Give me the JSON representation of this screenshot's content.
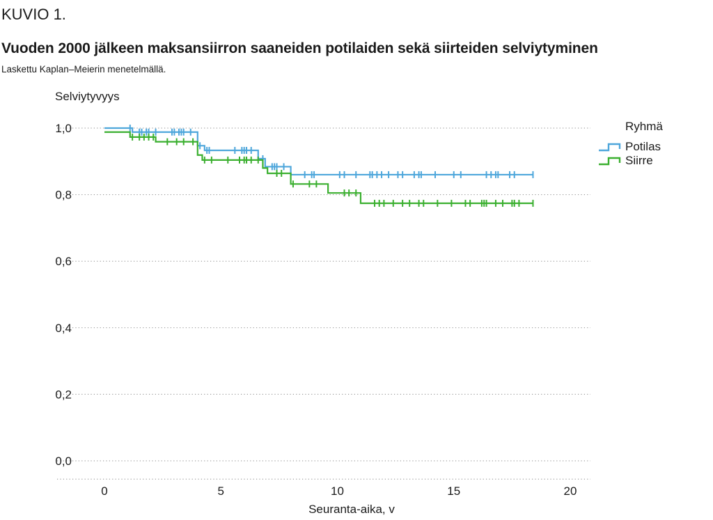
{
  "header": {
    "figure_label": "KUVIO 1.",
    "title": "Vuoden 2000 jälkeen maksansiirron saaneiden potilaiden sekä siirteiden selviytyminen",
    "subtitle": "Laskettu Kaplan–Meierin menetelmällä."
  },
  "chart_data": {
    "type": "line",
    "step": true,
    "ylabel": "Selviytyvyys",
    "xlabel": "Seuranta-aika, v",
    "xlim": [
      -0.4,
      20.9
    ],
    "ylim": [
      -0.055,
      1.0
    ],
    "x_ticks": [
      0,
      5,
      10,
      15,
      20
    ],
    "x_tick_labels": [
      "0",
      "5",
      "10",
      "15",
      "20"
    ],
    "y_ticks": [
      0.0,
      0.2,
      0.4,
      0.6,
      0.8,
      1.0
    ],
    "y_tick_labels": [
      "0,0",
      "0,2",
      "0,4",
      "0,6",
      "0,8",
      "1,0"
    ],
    "grid": "horizontal dotted",
    "legend": {
      "title": "Ryhmä",
      "position": "right"
    },
    "series": [
      {
        "name": "Potilas",
        "color": "#4da6db",
        "steps": [
          [
            0,
            1.0
          ],
          [
            1.2,
            0.988
          ],
          [
            4.0,
            0.947
          ],
          [
            4.3,
            0.933
          ],
          [
            6.6,
            0.908
          ],
          [
            6.9,
            0.884
          ],
          [
            8.0,
            0.86
          ],
          [
            18.4,
            0.86
          ]
        ],
        "censored": [
          1.1,
          1.5,
          1.6,
          1.8,
          1.9,
          2.2,
          2.9,
          3.0,
          3.2,
          3.3,
          3.4,
          3.7,
          4.1,
          4.4,
          4.5,
          5.6,
          5.9,
          6.0,
          6.1,
          6.3,
          6.8,
          7.2,
          7.3,
          7.4,
          7.7,
          8.6,
          8.9,
          9.0,
          10.1,
          10.3,
          10.8,
          11.4,
          11.5,
          11.7,
          11.9,
          12.2,
          12.6,
          12.8,
          13.3,
          13.5,
          13.6,
          14.2,
          15.0,
          15.3,
          16.4,
          16.6,
          16.8,
          16.9,
          17.4,
          17.6,
          18.4
        ]
      },
      {
        "name": "Siirre",
        "color": "#3aaf2f",
        "steps": [
          [
            0,
            0.988
          ],
          [
            1.1,
            0.973
          ],
          [
            2.2,
            0.959
          ],
          [
            4.0,
            0.919
          ],
          [
            4.2,
            0.904
          ],
          [
            6.8,
            0.88
          ],
          [
            7.0,
            0.864
          ],
          [
            8.0,
            0.832
          ],
          [
            9.6,
            0.805
          ],
          [
            11.0,
            0.774
          ],
          [
            18.4,
            0.774
          ]
        ],
        "censored": [
          1.2,
          1.5,
          1.7,
          1.9,
          2.1,
          2.7,
          3.1,
          3.4,
          3.8,
          4.3,
          4.6,
          5.3,
          5.8,
          6.0,
          6.1,
          6.3,
          6.6,
          7.4,
          7.6,
          8.1,
          8.8,
          9.1,
          10.3,
          10.5,
          10.8,
          11.6,
          11.8,
          12.0,
          12.4,
          12.8,
          13.1,
          13.5,
          13.7,
          14.3,
          14.9,
          15.5,
          15.7,
          16.2,
          16.3,
          16.4,
          16.8,
          17.1,
          17.5,
          17.6,
          17.8,
          18.4
        ]
      }
    ]
  }
}
